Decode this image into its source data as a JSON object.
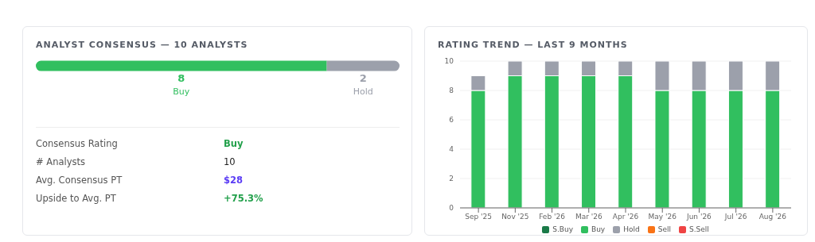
{
  "chart_data": [
    {
      "type": "bar",
      "orientation": "horizontal",
      "stacked": true,
      "title": "ANALYST CONSENSUS — 10 ANALYSTS",
      "categories": [
        null
      ],
      "data_labels": true,
      "series": [
        {
          "name": "Buy",
          "color": "#31bf5f",
          "values": [
            8
          ]
        },
        {
          "name": "Hold",
          "color": "#9ca0ab",
          "values": [
            2
          ]
        }
      ],
      "annotations": [
        "Consensus Rating",
        "Buy",
        "# Analysts",
        "10",
        "Avg. Consensus PT",
        "$28",
        "Upside to Avg. PT",
        "+75.3%"
      ]
    },
    {
      "type": "bar",
      "stacked": true,
      "title": "RATING TREND — LAST 9 MONTHS",
      "categories": [
        "Sep '25",
        "Nov '25",
        "Feb '26",
        "Mar '26",
        "Apr '26",
        "May '26",
        "Jun '26",
        "Jul '26",
        "Aug '26"
      ],
      "series": [
        {
          "name": "S.Buy",
          "color": "#1a7a48",
          "values": [
            0,
            0,
            0,
            0,
            0,
            0,
            0,
            0,
            0
          ]
        },
        {
          "name": "Buy",
          "color": "#31bf5f",
          "values": [
            8,
            9,
            9,
            9,
            9,
            8,
            8,
            8,
            8
          ]
        },
        {
          "name": "Hold",
          "color": "#9ca0ab",
          "values": [
            1,
            1,
            1,
            1,
            1,
            2,
            2,
            2,
            2
          ]
        },
        {
          "name": "Sell",
          "color": "#f97316",
          "values": [
            0,
            0,
            0,
            0,
            0,
            0,
            0,
            0,
            0
          ]
        },
        {
          "name": "S.Sell",
          "color": "#ef4444",
          "values": [
            0,
            0,
            0,
            0,
            0,
            0,
            0,
            0,
            0
          ]
        }
      ],
      "ylim": [
        0,
        10
      ],
      "yticks": [
        0,
        2,
        4,
        6,
        8,
        10
      ],
      "grid": "y",
      "legend": "bottom"
    }
  ]
}
